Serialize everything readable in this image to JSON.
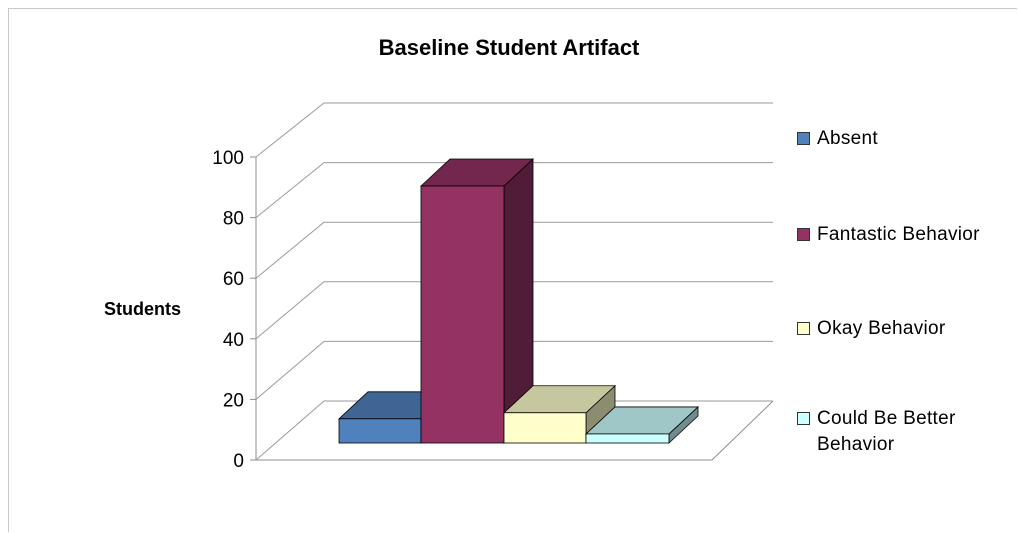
{
  "chart_data": {
    "type": "bar",
    "title": "Baseline Student Artifact",
    "xlabel": "",
    "ylabel": "Students",
    "ylim": [
      0,
      100
    ],
    "yticks": [
      "0",
      "20",
      "40",
      "60",
      "80",
      "100"
    ],
    "grid": true,
    "legend_position": "right",
    "style": "3d",
    "series": [
      {
        "name": "Absent",
        "value": 8,
        "color": "#4f81bd"
      },
      {
        "name": "Fantastic Behavior",
        "value": 85,
        "color": "#943264"
      },
      {
        "name": "Okay Behavior",
        "value": 10,
        "color": "#ffffcc"
      },
      {
        "name": "Could Be Better Behavior",
        "value": 3,
        "color": "#ccffff"
      }
    ]
  }
}
